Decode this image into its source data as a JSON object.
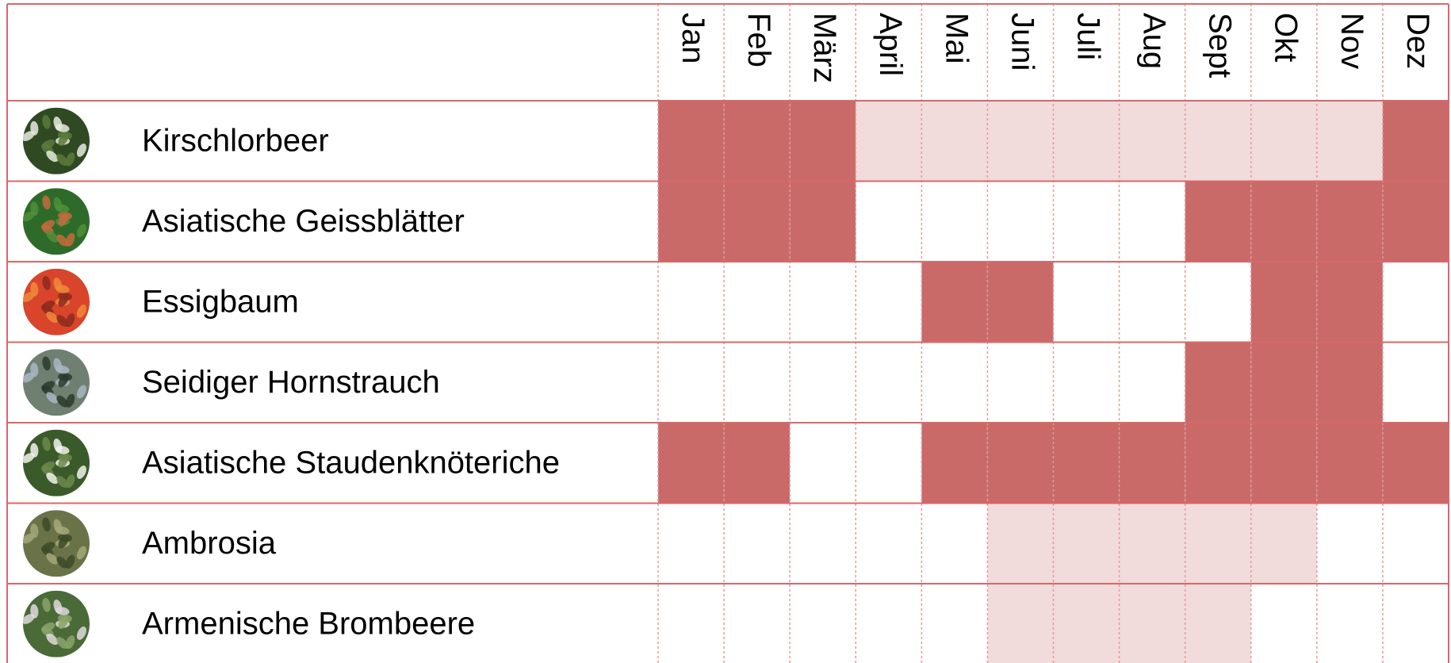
{
  "table": {
    "months": [
      "Jan",
      "Feb",
      "März",
      "April",
      "Mai",
      "Juni",
      "Juli",
      "Aug",
      "Sept",
      "Okt",
      "Nov",
      "Dez"
    ],
    "rows": [
      {
        "name": "Kirschlorbeer",
        "cells": [
          "#c96a68",
          "#c96a68",
          "#c96a68",
          "#f1dbdb",
          "#f1dbdb",
          "#f1dbdb",
          "#f1dbdb",
          "#f1dbdb",
          "#f1dbdb",
          "#f1dbdb",
          "#f1dbdb",
          "#c96a68"
        ]
      },
      {
        "name": "Asiatische Geissblätter",
        "cells": [
          "#c96a68",
          "#c96a68",
          "#c96a68",
          "#ffffff",
          "#ffffff",
          "#ffffff",
          "#ffffff",
          "#ffffff",
          "#c96a68",
          "#c96a68",
          "#c96a68",
          "#c96a68"
        ]
      },
      {
        "name": "Essigbaum",
        "cells": [
          "#ffffff",
          "#ffffff",
          "#ffffff",
          "#ffffff",
          "#c96a68",
          "#c96a68",
          "#ffffff",
          "#ffffff",
          "#ffffff",
          "#c96a68",
          "#c96a68",
          "#ffffff"
        ]
      },
      {
        "name": "Seidiger Hornstrauch",
        "cells": [
          "#ffffff",
          "#ffffff",
          "#ffffff",
          "#ffffff",
          "#ffffff",
          "#ffffff",
          "#ffffff",
          "#ffffff",
          "#c96a68",
          "#c96a68",
          "#c96a68",
          "#ffffff"
        ]
      },
      {
        "name": "Asiatische Staudenknöteriche",
        "cells": [
          "#c96a68",
          "#c96a68",
          "#ffffff",
          "#ffffff",
          "#c96a68",
          "#c96a68",
          "#c96a68",
          "#c96a68",
          "#c96a68",
          "#c96a68",
          "#c96a68",
          "#c96a68"
        ]
      },
      {
        "name": "Ambrosia",
        "cells": [
          "#ffffff",
          "#ffffff",
          "#ffffff",
          "#ffffff",
          "#ffffff",
          "#f1dbdb",
          "#f1dbdb",
          "#f1dbdb",
          "#f1dbdb",
          "#f1dbdb",
          "#ffffff",
          "#ffffff"
        ]
      },
      {
        "name": "Armenische Brombeere",
        "cells": [
          "#ffffff",
          "#ffffff",
          "#ffffff",
          "#ffffff",
          "#ffffff",
          "#f1dbdb",
          "#f1dbdb",
          "#f1dbdb",
          "#f1dbdb",
          "#ffffff",
          "#ffffff",
          "#ffffff"
        ]
      }
    ]
  }
}
